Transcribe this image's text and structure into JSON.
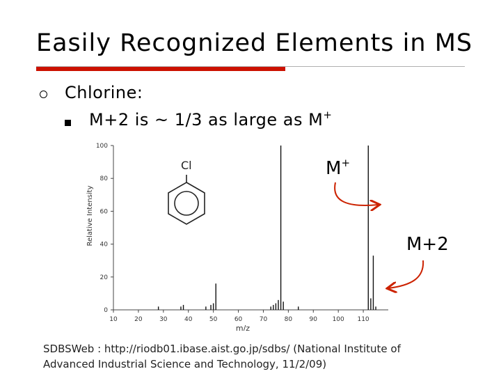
{
  "slide": {
    "title": "Easily Recognized Elements in MS",
    "bullet1": "Chlorine:",
    "bullet2_text": "M+2 is ~ 1/3 as large as M",
    "bullet2_sup": "+",
    "annotation_m": "M",
    "annotation_m_sup": "+",
    "annotation_m2": "M+2",
    "molecule_label": "Cl",
    "citation_line1": "SDBSWeb : http://riodb01.ibase.aist.go.jp/sdbs/ (National Institute of",
    "citation_line2": "Advanced Industrial Science and Technology, 11/2/09)",
    "colors": {
      "accent_red": "#cc1100",
      "arrow_red": "#cc2200",
      "rule_gray": "#b0b0b0"
    }
  },
  "chart_data": {
    "type": "bar",
    "title": "",
    "xlabel": "m/z",
    "ylabel": "Relative Intensity",
    "xlim": [
      10,
      120
    ],
    "ylim": [
      0,
      100
    ],
    "x_ticks": [
      "10",
      "20",
      "30",
      "40",
      "50",
      "60",
      "70",
      "80",
      "90",
      "100",
      "110"
    ],
    "y_ticks": [
      "0",
      "20",
      "40",
      "60",
      "80",
      "100"
    ],
    "series": [
      {
        "x": [
          28,
          37,
          38,
          47,
          49,
          50,
          51,
          73,
          74,
          75,
          76,
          77,
          78,
          84,
          112,
          113,
          114,
          115
        ],
        "values": [
          2,
          2,
          3,
          2,
          3,
          4,
          16,
          2,
          3,
          4,
          6,
          100,
          5,
          2,
          100,
          7,
          33,
          2
        ]
      }
    ]
  }
}
